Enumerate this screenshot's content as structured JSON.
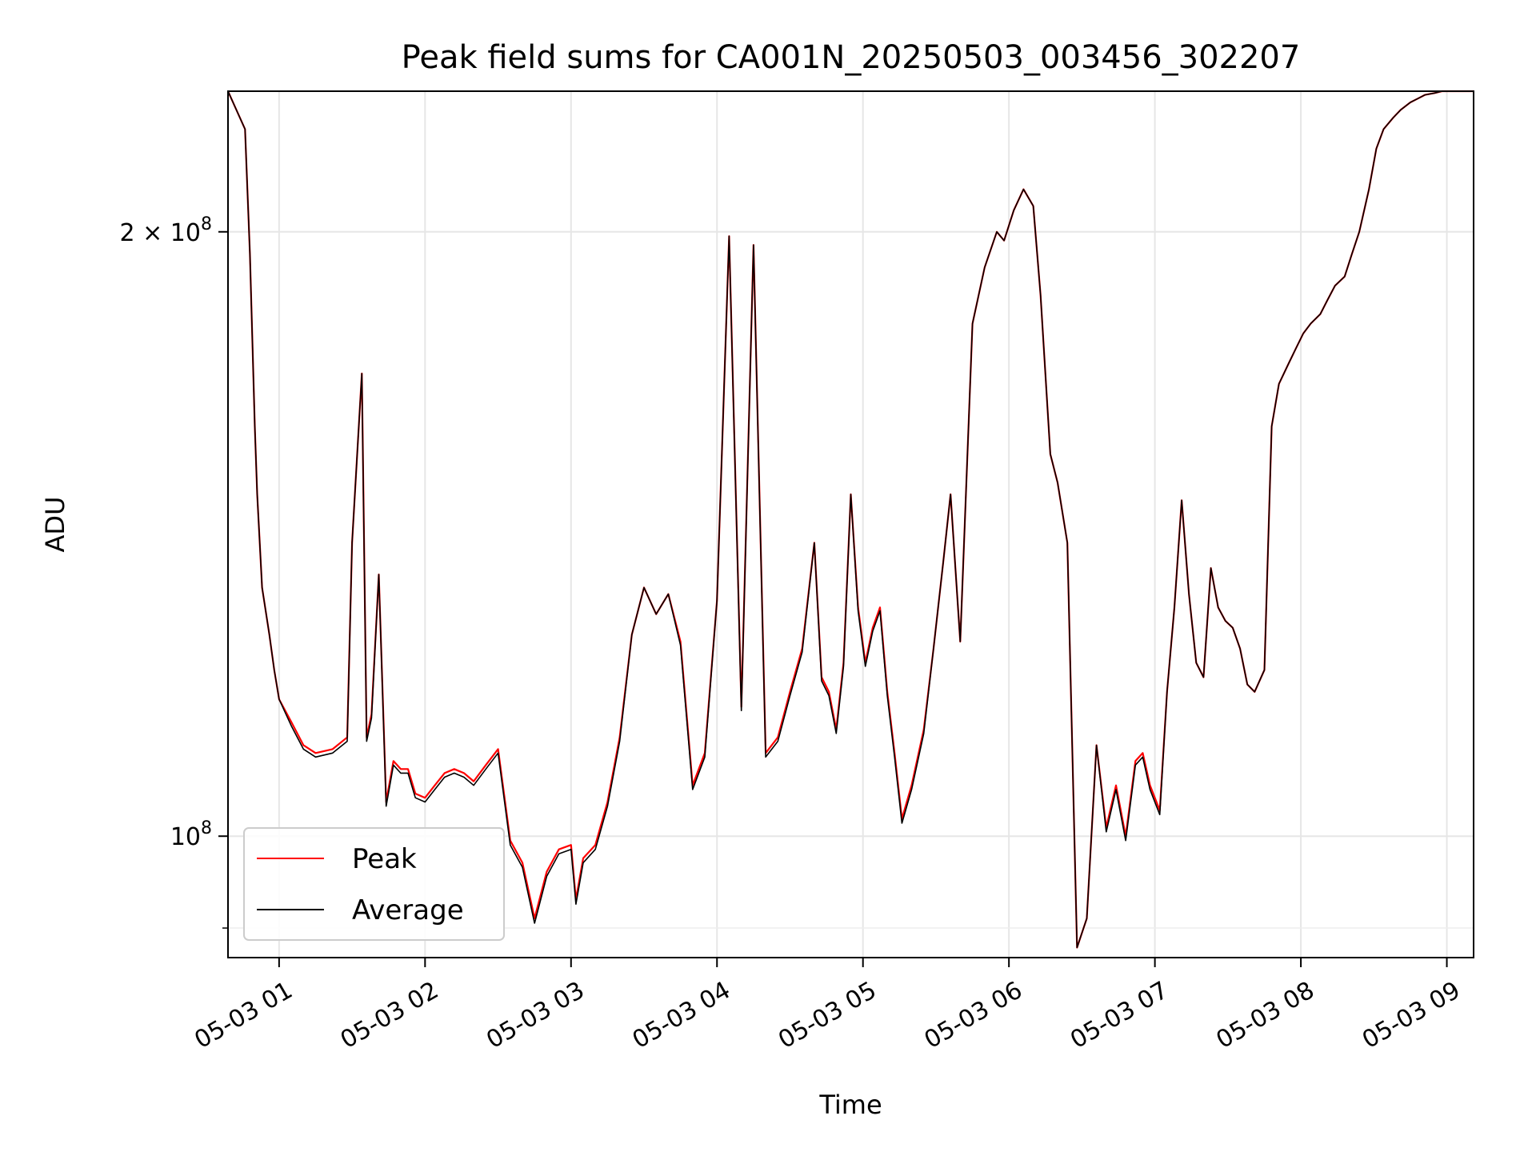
{
  "chart_data": {
    "type": "line",
    "title": "Peak field sums for CA001N_20250503_003456_302207",
    "xlabel": "Time",
    "ylabel": "ADU",
    "yscale": "log",
    "xlim": [
      "2025-05-03 00:39",
      "2025-05-03 09:11"
    ],
    "ylim": [
      87000000,
      235000000
    ],
    "grid": true,
    "legend_position": "lower-left",
    "x_ticks": [
      "05-03 01",
      "05-03 02",
      "05-03 03",
      "05-03 04",
      "05-03 05",
      "05-03 06",
      "05-03 07",
      "05-03 08",
      "05-03 09"
    ],
    "y_ticks": [
      {
        "value": 100000000,
        "label_base": "10",
        "label_exp": "8"
      },
      {
        "value": 200000000,
        "label_base": "2 × 10",
        "label_exp": "8"
      }
    ],
    "x": [
      "00:39",
      "00:46",
      "00:48",
      "00:50",
      "00:51",
      "00:53",
      "00:56",
      "00:58",
      "01:00",
      "01:05",
      "01:10",
      "01:15",
      "01:22",
      "01:28",
      "01:30",
      "01:34",
      "01:36",
      "01:38",
      "01:41",
      "01:44",
      "01:47",
      "01:50",
      "01:53",
      "01:56",
      "02:00",
      "02:04",
      "02:08",
      "02:12",
      "02:16",
      "02:20",
      "02:25",
      "02:30",
      "02:35",
      "02:40",
      "02:45",
      "02:50",
      "02:55",
      "03:00",
      "03:02",
      "03:05",
      "03:10",
      "03:15",
      "03:20",
      "03:25",
      "03:30",
      "03:35",
      "03:40",
      "03:45",
      "03:50",
      "03:55",
      "04:00",
      "04:05",
      "04:10",
      "04:15",
      "04:20",
      "04:25",
      "04:30",
      "04:35",
      "04:40",
      "04:43",
      "04:46",
      "04:49",
      "04:52",
      "04:55",
      "04:58",
      "05:01",
      "05:04",
      "05:07",
      "05:10",
      "05:13",
      "05:16",
      "05:20",
      "05:25",
      "05:29",
      "05:33",
      "05:36",
      "05:40",
      "05:45",
      "05:50",
      "05:55",
      "05:58",
      "06:02",
      "06:06",
      "06:10",
      "06:13",
      "06:17",
      "06:20",
      "06:24",
      "06:28",
      "06:32",
      "06:36",
      "06:40",
      "06:44",
      "06:48",
      "06:52",
      "06:55",
      "06:58",
      "07:02",
      "07:05",
      "07:08",
      "07:11",
      "07:14",
      "07:17",
      "07:20",
      "07:23",
      "07:26",
      "07:29",
      "07:32",
      "07:35",
      "07:38",
      "07:41",
      "07:45",
      "07:48",
      "07:51",
      "07:55",
      "07:58",
      "08:01",
      "08:04",
      "08:08",
      "08:11",
      "08:14",
      "08:18",
      "08:21",
      "08:24",
      "08:28",
      "08:31",
      "08:34",
      "08:38",
      "08:41",
      "08:45",
      "08:48",
      "08:51",
      "08:55",
      "08:58",
      "09:02",
      "09:06",
      "09:11"
    ],
    "series": [
      {
        "name": "Peak",
        "color": "#ff0000",
        "values": [
          235000000,
          225000000,
          195000000,
          160000000,
          148000000,
          133000000,
          126000000,
          121000000,
          117000000,
          114000000,
          111000000,
          110000000,
          110500000,
          112000000,
          140000000,
          170000000,
          112000000,
          115000000,
          135000000,
          104000000,
          109000000,
          108000000,
          108000000,
          105000000,
          104500000,
          106000000,
          107500000,
          108000000,
          107500000,
          106500000,
          108500000,
          110500000,
          99500000,
          97000000,
          91000000,
          96000000,
          98500000,
          99000000,
          93000000,
          97500000,
          99000000,
          104000000,
          112000000,
          126000000,
          133000000,
          129000000,
          132000000,
          125000000,
          106000000,
          110000000,
          131000000,
          199000000,
          116000000,
          197000000,
          110000000,
          112000000,
          118000000,
          124000000,
          140000000,
          120000000,
          118000000,
          113000000,
          122000000,
          148000000,
          130000000,
          122000000,
          127000000,
          130000000,
          118000000,
          110000000,
          102000000,
          106000000,
          113000000,
          124000000,
          137000000,
          148000000,
          125000000,
          180000000,
          192000000,
          200000000,
          198000000,
          205000000,
          210000000,
          206000000,
          186000000,
          155000000,
          150000000,
          140000000,
          88000000,
          91000000,
          111000000,
          101000000,
          106000000,
          100000000,
          109000000,
          110000000,
          106000000,
          103000000,
          118000000,
          130000000,
          147000000,
          132000000,
          122000000,
          120000000,
          136000000,
          130000000,
          128000000,
          127000000,
          124000000,
          119000000,
          118000000,
          121000000,
          160000000,
          168000000,
          172000000,
          175000000,
          178000000,
          180000000,
          182000000,
          185000000,
          188000000,
          190000000,
          195000000,
          200000000,
          210000000,
          220000000,
          225000000,
          228000000,
          230000000,
          232000000,
          233000000,
          234000000,
          234500000,
          235000000,
          235000000,
          235000000,
          235000000
        ]
      },
      {
        "name": "Average",
        "color": "#000000",
        "values": [
          235000000,
          225000000,
          195000000,
          160000000,
          148000000,
          133000000,
          126000000,
          121000000,
          117000000,
          113500000,
          110500000,
          109500000,
          110000000,
          111500000,
          140000000,
          170000000,
          111500000,
          114500000,
          135000000,
          103500000,
          108500000,
          107500000,
          107500000,
          104500000,
          104000000,
          105500000,
          107000000,
          107500000,
          107000000,
          106000000,
          108000000,
          110000000,
          99000000,
          96500000,
          90500000,
          95500000,
          98000000,
          98500000,
          92500000,
          97000000,
          98500000,
          103500000,
          111500000,
          126000000,
          133000000,
          129000000,
          132000000,
          124500000,
          105500000,
          109500000,
          131000000,
          199000000,
          115500000,
          197000000,
          109500000,
          111500000,
          117500000,
          123500000,
          140000000,
          119500000,
          117500000,
          112500000,
          121500000,
          148000000,
          129500000,
          121500000,
          126500000,
          129500000,
          117500000,
          109500000,
          101500000,
          105500000,
          112500000,
          124000000,
          137000000,
          148000000,
          125000000,
          180000000,
          192000000,
          200000000,
          198000000,
          205000000,
          210000000,
          206000000,
          186000000,
          155000000,
          150000000,
          140000000,
          88000000,
          91000000,
          111000000,
          100500000,
          105500000,
          99500000,
          108500000,
          109500000,
          105500000,
          102500000,
          118000000,
          130000000,
          147000000,
          132000000,
          122000000,
          120000000,
          136000000,
          130000000,
          128000000,
          127000000,
          124000000,
          119000000,
          118000000,
          121000000,
          160000000,
          168000000,
          172000000,
          175000000,
          178000000,
          180000000,
          182000000,
          185000000,
          188000000,
          190000000,
          195000000,
          200000000,
          210000000,
          220000000,
          225000000,
          228000000,
          230000000,
          232000000,
          233000000,
          234000000,
          234500000,
          235000000,
          235000000,
          235000000,
          235000000
        ]
      }
    ]
  }
}
